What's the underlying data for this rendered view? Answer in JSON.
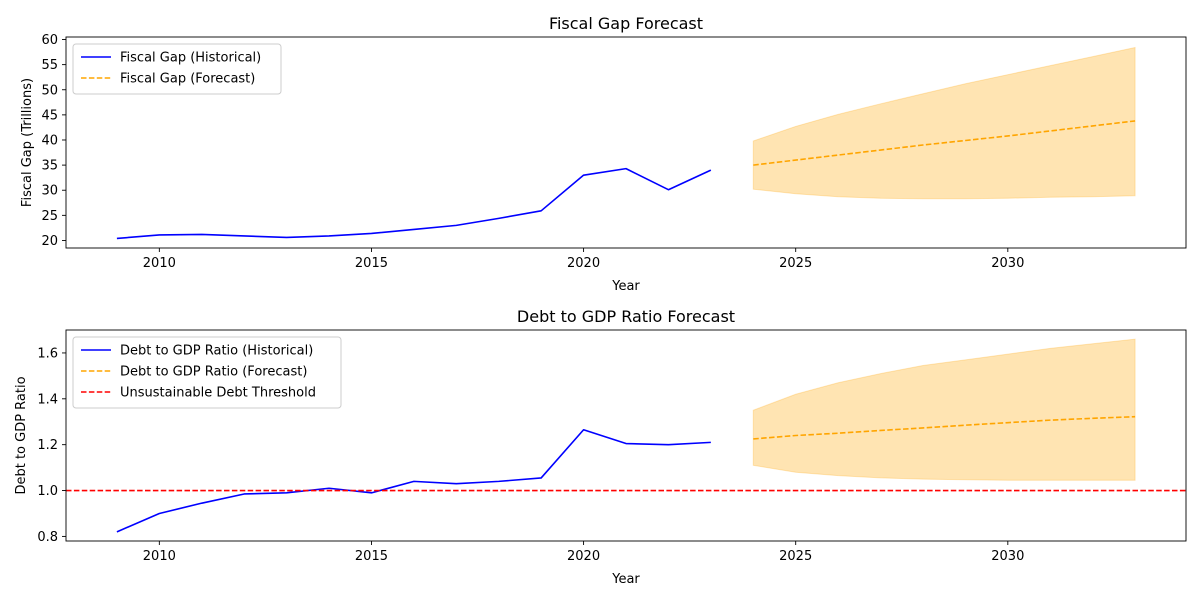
{
  "colors": {
    "historical": "#0000ff",
    "forecast": "#ffa500",
    "band": "#ffa500",
    "threshold": "#ff0000",
    "legend_border": "#cccccc"
  },
  "chart_data": [
    {
      "type": "line",
      "title": "Fiscal Gap Forecast",
      "xlabel": "Year",
      "ylabel": "Fiscal Gap (Trillions)",
      "xlim": [
        2007.8,
        2034.2
      ],
      "ylim": [
        18.5,
        60.5
      ],
      "xticks": [
        2010,
        2015,
        2020,
        2025,
        2030
      ],
      "yticks": [
        20,
        25,
        30,
        35,
        40,
        45,
        50,
        55,
        60
      ],
      "ytick_decimals": 0,
      "grid": false,
      "legend": "top-left",
      "series": [
        {
          "name": "Fiscal Gap (Historical)",
          "style": "solid",
          "color": "#0000ff",
          "x": [
            2009,
            2010,
            2011,
            2012,
            2013,
            2014,
            2015,
            2016,
            2017,
            2018,
            2019,
            2020,
            2021,
            2022,
            2023
          ],
          "y": [
            20.4,
            21.1,
            21.2,
            20.9,
            20.6,
            20.9,
            21.4,
            22.2,
            23.0,
            24.4,
            25.9,
            33.0,
            34.3,
            30.1,
            34.0
          ]
        },
        {
          "name": "Fiscal Gap (Forecast)",
          "style": "dashed",
          "color": "#ffa500",
          "x": [
            2024,
            2025,
            2026,
            2027,
            2028,
            2029,
            2030,
            2031,
            2032,
            2033
          ],
          "y": [
            35.0,
            36.0,
            37.0,
            38.0,
            39.0,
            39.9,
            40.8,
            41.8,
            42.8,
            43.8
          ],
          "band_upper": [
            39.8,
            42.7,
            45.1,
            47.2,
            49.2,
            51.2,
            53.0,
            54.8,
            56.6,
            58.4
          ],
          "band_lower": [
            30.2,
            29.3,
            28.7,
            28.4,
            28.3,
            28.3,
            28.4,
            28.6,
            28.7,
            28.9
          ]
        }
      ]
    },
    {
      "type": "line",
      "title": "Debt to GDP Ratio Forecast",
      "xlabel": "Year",
      "ylabel": "Debt to GDP Ratio",
      "xlim": [
        2007.8,
        2034.2
      ],
      "ylim": [
        0.78,
        1.7
      ],
      "xticks": [
        2010,
        2015,
        2020,
        2025,
        2030
      ],
      "yticks": [
        0.8,
        1.0,
        1.2,
        1.4,
        1.6
      ],
      "ytick_decimals": 1,
      "grid": false,
      "legend": "top-left",
      "series": [
        {
          "name": "Debt to GDP Ratio (Historical)",
          "style": "solid",
          "color": "#0000ff",
          "x": [
            2009,
            2010,
            2011,
            2012,
            2013,
            2014,
            2015,
            2016,
            2017,
            2018,
            2019,
            2020,
            2021,
            2022,
            2023
          ],
          "y": [
            0.82,
            0.9,
            0.945,
            0.985,
            0.99,
            1.01,
            0.99,
            1.04,
            1.03,
            1.04,
            1.055,
            1.265,
            1.205,
            1.2,
            1.21
          ]
        },
        {
          "name": "Debt to GDP Ratio (Forecast)",
          "style": "dashed",
          "color": "#ffa500",
          "x": [
            2024,
            2025,
            2026,
            2027,
            2028,
            2029,
            2030,
            2031,
            2032,
            2033
          ],
          "y": [
            1.225,
            1.24,
            1.25,
            1.262,
            1.273,
            1.285,
            1.296,
            1.307,
            1.315,
            1.322
          ],
          "band_upper": [
            1.35,
            1.42,
            1.47,
            1.51,
            1.545,
            1.57,
            1.595,
            1.62,
            1.64,
            1.66
          ],
          "band_lower": [
            1.11,
            1.08,
            1.065,
            1.055,
            1.05,
            1.047,
            1.045,
            1.045,
            1.045,
            1.045
          ]
        },
        {
          "name": "Unsustainable Debt Threshold",
          "style": "dashed",
          "color": "#ff0000",
          "hline": 1.0
        }
      ]
    }
  ]
}
